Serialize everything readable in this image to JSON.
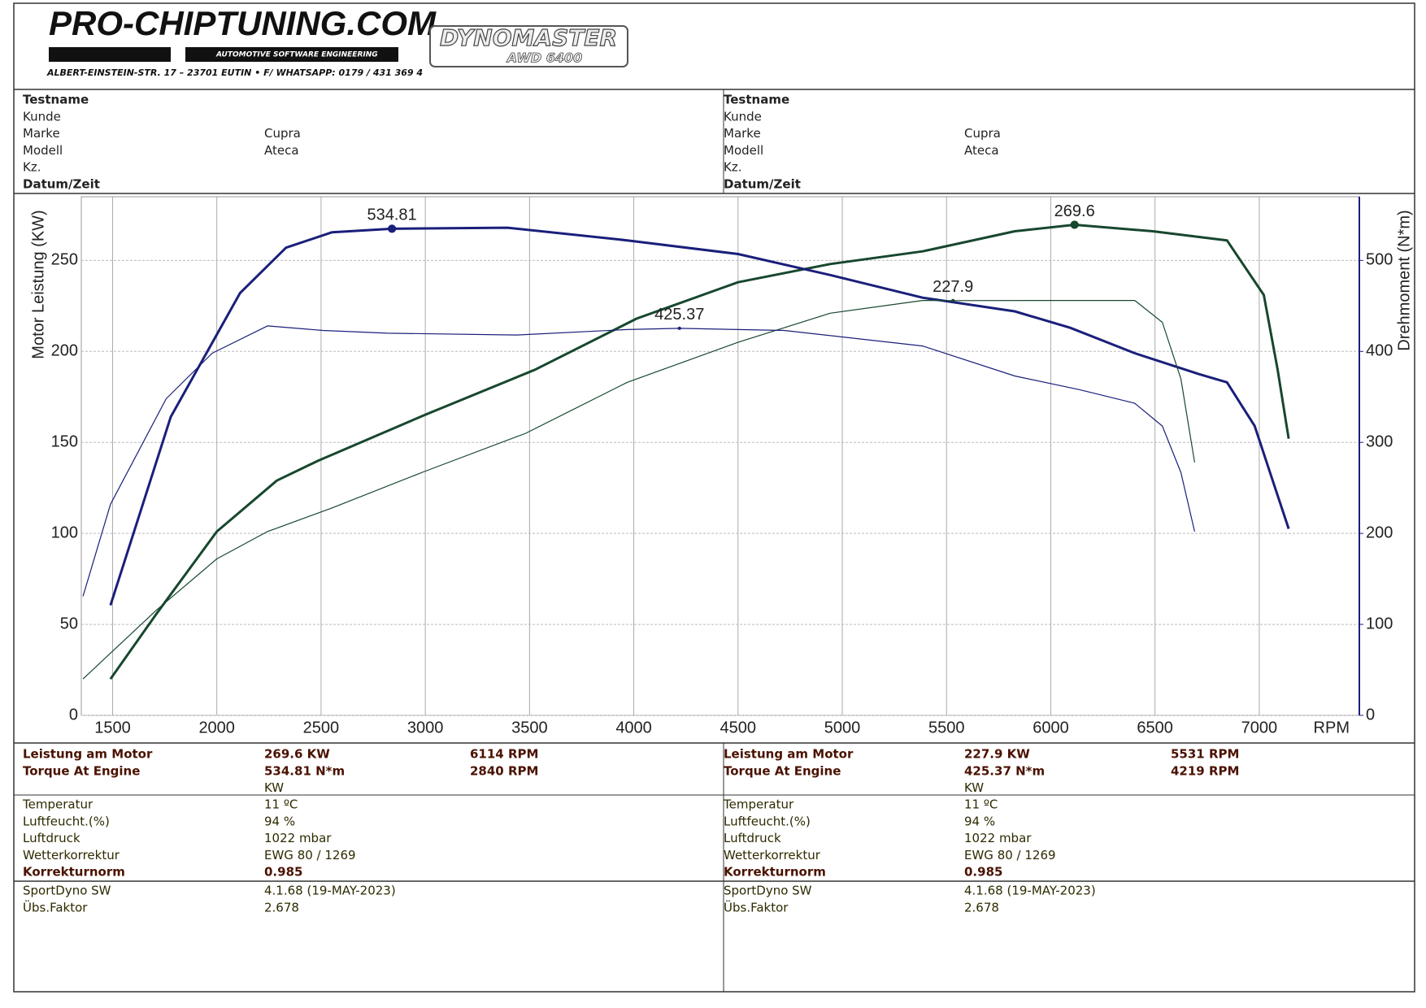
{
  "header": {
    "logo": "PRO-CHIPTUNING.COM",
    "logo_tagline": "AUTOMOTIVE SOFTWARE ENGINEERING",
    "address": "ALBERT-EINSTEIN-STR. 17 – 23701 EUTIN • F/ WHATSAPP: 0179 / 431 369 4",
    "brand": "DYNOMASTER",
    "brand_model": "AWD 6400"
  },
  "runs": [
    {
      "info": [
        {
          "label": "Testname"
        },
        {
          "label": "Kunde"
        },
        {
          "label": "Marke",
          "value": "Cupra"
        },
        {
          "label": "Modell",
          "value": "Ateca"
        },
        {
          "label": "Kz."
        },
        {
          "label": "Datum/Zeit"
        }
      ],
      "results": [
        {
          "label": "Leistung am Motor",
          "value": "269.6 KW",
          "rpm": "6114 RPM"
        },
        {
          "label": "Torque At Engine",
          "value": "534.81 N*m",
          "rpm": "2840 RPM"
        },
        {
          "value": "KW"
        }
      ],
      "conditions": [
        {
          "label": "Temperatur",
          "value": "11 ºC"
        },
        {
          "label": "Luftfeucht.(%)",
          "value": "94 %"
        },
        {
          "label": "Luftdruck",
          "value": "1022 mbar"
        },
        {
          "label": "Wetterkorrektur",
          "value": "EWG 80 / 1269"
        },
        {
          "label": "Korrekturnorm",
          "value": "0.985"
        }
      ],
      "software": [
        {
          "label": "SportDyno SW",
          "value": "4.1.68 (19-MAY-2023)"
        },
        {
          "label": "Übs.Faktor",
          "value": "2.678"
        }
      ]
    },
    {
      "info": [
        {
          "label": "Testname"
        },
        {
          "label": "Kunde"
        },
        {
          "label": "Marke",
          "value": "Cupra"
        },
        {
          "label": "Modell",
          "value": "Ateca"
        },
        {
          "label": "Kz."
        },
        {
          "label": "Datum/Zeit"
        }
      ],
      "results": [
        {
          "label": "Leistung am Motor",
          "value": "227.9 KW",
          "rpm": "5531 RPM"
        },
        {
          "label": "Torque At Engine",
          "value": "425.37 N*m",
          "rpm": "4219 RPM"
        },
        {
          "value": "KW"
        }
      ],
      "conditions": [
        {
          "label": "Temperatur",
          "value": "11 ºC"
        },
        {
          "label": "Luftfeucht.(%)",
          "value": "94 %"
        },
        {
          "label": "Luftdruck",
          "value": "1022 mbar"
        },
        {
          "label": "Wetterkorrektur",
          "value": "EWG 80 / 1269"
        },
        {
          "label": "Korrekturnorm",
          "value": "0.985"
        }
      ],
      "software": [
        {
          "label": "SportDyno SW",
          "value": "4.1.68 (19-MAY-2023)"
        },
        {
          "label": "Übs.Faktor",
          "value": "2.678"
        }
      ]
    }
  ],
  "chart_data": {
    "type": "line",
    "x_label": "RPM",
    "y_label": "Motor Leistung (KW)",
    "y2_label": "Drehmoment (N*m)",
    "xlim": [
      1350,
      7480
    ],
    "xticks": [
      1500,
      2000,
      2500,
      3000,
      3500,
      4000,
      4500,
      5000,
      5500,
      6000,
      6500,
      7000
    ],
    "ylim": [
      0,
      285
    ],
    "yticks": [
      0,
      50,
      100,
      150,
      200,
      250
    ],
    "y2lim": [
      0,
      570
    ],
    "y2ticks": [
      0,
      100,
      200,
      300,
      400,
      500
    ],
    "grid": true,
    "series": [
      {
        "color": "#17472e",
        "width": 3,
        "x": [
          1490,
          1712,
          2000,
          2288,
          2487,
          2996,
          3527,
          4013,
          4500,
          4942,
          5385,
          5827,
          6114,
          6490,
          6845,
          7022,
          7088,
          7141
        ],
        "values": [
          20,
          56,
          101,
          129,
          140,
          165,
          190,
          218,
          238,
          248,
          255,
          266,
          269.6,
          266,
          261,
          231,
          190,
          152
        ]
      },
      {
        "color": "#1a1f7a",
        "width": 3,
        "axis": "y2",
        "x": [
          1490,
          1779,
          2111,
          2332,
          2553,
          2840,
          3394,
          3969,
          4500,
          4942,
          5385,
          5827,
          6093,
          6403,
          6712,
          6845,
          6978,
          7066,
          7141
        ],
        "values": [
          121,
          328,
          464,
          514,
          531,
          534.81,
          536,
          522,
          507,
          484,
          459,
          444,
          426,
          398,
          375,
          366,
          318,
          257,
          205
        ]
      },
      {
        "color": "#17472e",
        "width": 1.2,
        "x": [
          1358,
          1712,
          2000,
          2243,
          2553,
          2996,
          3482,
          3969,
          4500,
          4942,
          5385,
          5531,
          5960,
          6403,
          6535,
          6624,
          6690
        ],
        "values": [
          20,
          58,
          86,
          101,
          114,
          134,
          155,
          183,
          205,
          221,
          228,
          227.9,
          228,
          228,
          216,
          185,
          139
        ]
      },
      {
        "color": "#1a1f7a",
        "width": 1.2,
        "axis": "y2",
        "x": [
          1358,
          1490,
          1757,
          1978,
          2243,
          2509,
          2819,
          3438,
          3969,
          4219,
          4721,
          5385,
          5827,
          6137,
          6403,
          6535,
          6624,
          6690
        ],
        "values": [
          131,
          232,
          348,
          398,
          428,
          423,
          420,
          418,
          424,
          425.37,
          423,
          406,
          373,
          358,
          343,
          318,
          267,
          202
        ]
      }
    ],
    "peak_labels": [
      {
        "x": 2840,
        "value": 534.81,
        "axis": "y2",
        "color": "#1a1f7a",
        "width": 3
      },
      {
        "x": 6114,
        "value": 269.6,
        "color": "#17472e",
        "width": 3
      },
      {
        "x": 5531,
        "value": 227.9,
        "color": "#17472e",
        "width": 1.2
      },
      {
        "x": 4219,
        "value": 425.37,
        "axis": "y2",
        "color": "#1a1f7a",
        "width": 1.2
      }
    ]
  }
}
